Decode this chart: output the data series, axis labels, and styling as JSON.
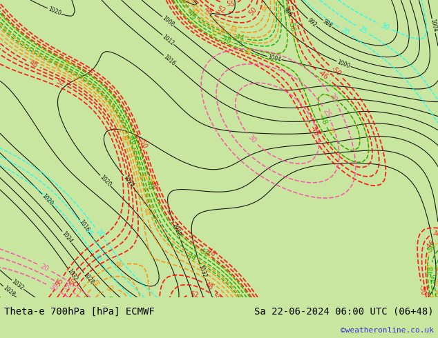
{
  "title_left": "Theta-e 700hPa [hPa] ECMWF",
  "title_right": "Sa 22-06-2024 06:00 UTC (06+48)",
  "copyright": "©weatheronline.co.uk",
  "map_bg": "#c8e6a0",
  "fig_width": 6.34,
  "fig_height": 4.9,
  "dpi": 100,
  "bottom_bar_color": "#d0d0d0",
  "title_fontsize": 10,
  "copyright_color": "#3333cc",
  "copyright_fontsize": 8
}
